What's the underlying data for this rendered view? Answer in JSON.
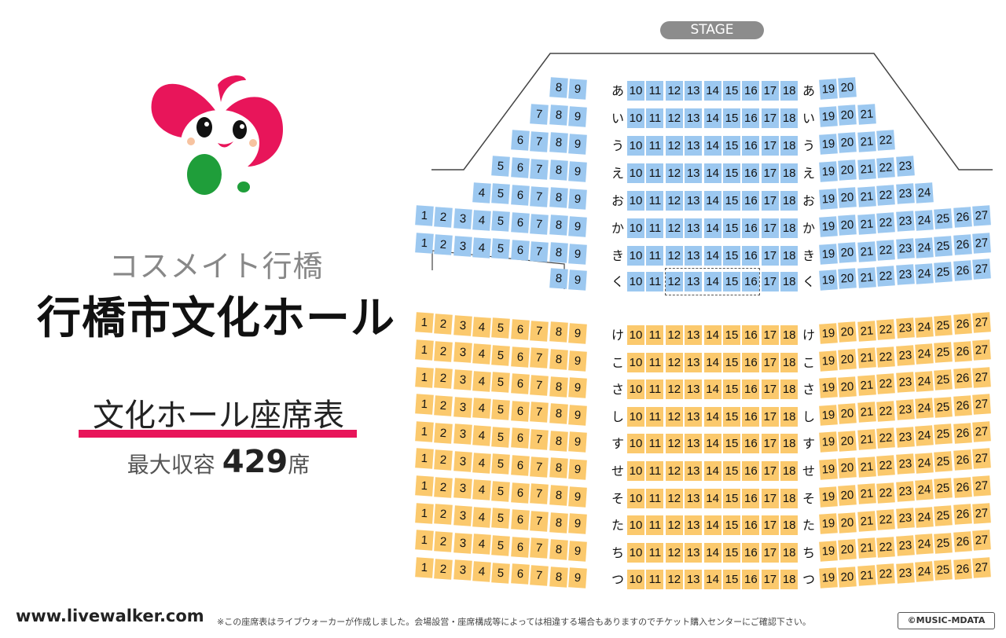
{
  "venue": {
    "subtitle": "コスメイト行橋",
    "title": "行橋市文化ホール"
  },
  "chart": {
    "title": "文化ホール座席表",
    "capacity_prefix": "最大収容",
    "capacity_number": "429",
    "capacity_suffix": "席"
  },
  "stage_label": "STAGE",
  "footer": {
    "site": "www.livewalker.com",
    "disclaimer": "※この座席表はライブウォーカーが作成しました。会場設営・座席構成等によっては相違する場合もありますのでチケット購入センターにご確認下さい。",
    "copyright": "©MUSIC-MDATA"
  },
  "colors": {
    "upper_block": "#9cc8f0",
    "lower_block": "#fbc96d",
    "accent": "#e8155a",
    "stage": "#8c8c8c"
  },
  "upper_rows": [
    {
      "label": "あ",
      "left": [
        8,
        9
      ],
      "center": [
        10,
        18
      ],
      "right": [
        19,
        20
      ]
    },
    {
      "label": "い",
      "left": [
        7,
        9
      ],
      "center": [
        10,
        18
      ],
      "right": [
        19,
        21
      ]
    },
    {
      "label": "う",
      "left": [
        6,
        9
      ],
      "center": [
        10,
        18
      ],
      "right": [
        19,
        22
      ]
    },
    {
      "label": "え",
      "left": [
        5,
        9
      ],
      "center": [
        10,
        18
      ],
      "right": [
        19,
        23
      ]
    },
    {
      "label": "お",
      "left": [
        4,
        9
      ],
      "center": [
        10,
        18
      ],
      "right": [
        19,
        24
      ]
    },
    {
      "label": "か",
      "left": [
        1,
        9
      ],
      "center": [
        10,
        18
      ],
      "right": [
        19,
        27
      ]
    },
    {
      "label": "き",
      "left": [
        1,
        9
      ],
      "center": [
        10,
        18
      ],
      "right": [
        19,
        27
      ]
    },
    {
      "label": "く",
      "left": [
        8,
        9
      ],
      "center": [
        10,
        18
      ],
      "right": [
        19,
        27
      ]
    }
  ],
  "lower_rows": [
    {
      "label": "け",
      "left": [
        1,
        9
      ],
      "center": [
        10,
        18
      ],
      "right": [
        19,
        27
      ]
    },
    {
      "label": "こ",
      "left": [
        1,
        9
      ],
      "center": [
        10,
        18
      ],
      "right": [
        19,
        27
      ]
    },
    {
      "label": "さ",
      "left": [
        1,
        9
      ],
      "center": [
        10,
        18
      ],
      "right": [
        19,
        27
      ]
    },
    {
      "label": "し",
      "left": [
        1,
        9
      ],
      "center": [
        10,
        18
      ],
      "right": [
        19,
        27
      ]
    },
    {
      "label": "す",
      "left": [
        1,
        9
      ],
      "center": [
        10,
        18
      ],
      "right": [
        19,
        27
      ]
    },
    {
      "label": "せ",
      "left": [
        1,
        9
      ],
      "center": [
        10,
        18
      ],
      "right": [
        19,
        27
      ]
    },
    {
      "label": "そ",
      "left": [
        1,
        9
      ],
      "center": [
        10,
        18
      ],
      "right": [
        19,
        27
      ]
    },
    {
      "label": "た",
      "left": [
        1,
        9
      ],
      "center": [
        10,
        18
      ],
      "right": [
        19,
        27
      ]
    },
    {
      "label": "ち",
      "left": [
        1,
        9
      ],
      "center": [
        10,
        18
      ],
      "right": [
        19,
        27
      ]
    },
    {
      "label": "つ",
      "left": [
        1,
        9
      ],
      "center": [
        10,
        18
      ],
      "right": [
        19,
        27
      ]
    }
  ]
}
